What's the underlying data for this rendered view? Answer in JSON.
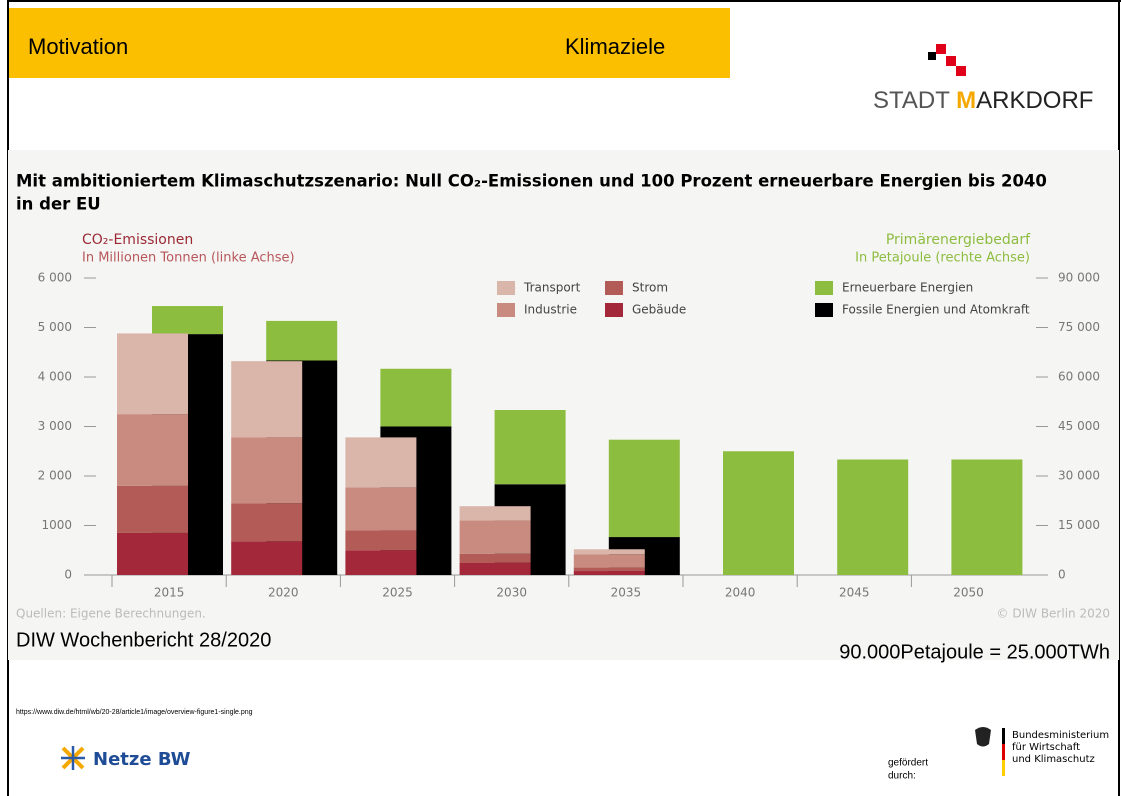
{
  "header": {
    "section": "Motivation",
    "topic": "Klimaziele",
    "logo": {
      "part1": "STADT ",
      "part2": "M",
      "part3": "ARKDORF"
    }
  },
  "chart_data": {
    "type": "bar",
    "title": [
      "Mit ambitioniertem Klimaschutzszenario: Null CO₂-Emissionen und 100 Prozent erneuerbare Energien bis 2040",
      "in der EU"
    ],
    "y_label": [
      "CO₂-Emissionen",
      "In Millionen Tonnen (linke Achse)"
    ],
    "y2_label": [
      "Primärenergiebedarf",
      "In Petajoule (rechte Achse)"
    ],
    "categories": [
      "2015",
      "2020",
      "2025",
      "2030",
      "2035",
      "2040",
      "2045",
      "2050"
    ],
    "series": [
      {
        "name": "Transport",
        "color": "#d9b5aa",
        "values": [
          1630,
          1540,
          1010,
          290,
          100,
          0,
          0,
          0
        ]
      },
      {
        "name": "Industrie",
        "color": "#c98b7f",
        "values": [
          1450,
          1330,
          870,
          670,
          270,
          0,
          0,
          0
        ]
      },
      {
        "name": "Strom",
        "color": "#b35b56",
        "values": [
          950,
          770,
          400,
          180,
          70,
          0,
          0,
          0
        ]
      },
      {
        "name": "Gebäude",
        "color": "#a3283a",
        "values": [
          850,
          680,
          500,
          250,
          80,
          0,
          0,
          0
        ]
      },
      {
        "name": "Erneuerbare Energien",
        "color": "#8dbd3f",
        "axis": "y2",
        "values": [
          8500,
          12000,
          17500,
          22500,
          29500,
          37500,
          35000,
          35000
        ]
      },
      {
        "name": "Fossile Energien und Atomkraft",
        "color": "#000000",
        "axis": "y2",
        "values": [
          73000,
          65000,
          45000,
          27500,
          11500,
          0,
          0,
          0
        ]
      }
    ],
    "ylim": [
      0,
      6000
    ],
    "yticks": [
      0,
      {
        "value": 1000,
        "label": "1000"
      },
      {
        "value": 2000,
        "label": "2 000"
      },
      {
        "value": 3000,
        "label": "3 000"
      },
      {
        "value": 4000,
        "label": "4 000"
      },
      {
        "value": 5000,
        "label": "5 000"
      },
      {
        "value": 6000,
        "label": "6 000"
      }
    ],
    "y2lim": [
      0,
      90000
    ],
    "y2ticks": [
      0,
      {
        "value": 15000,
        "label": "15 000"
      },
      {
        "value": 30000,
        "label": "30 000"
      },
      {
        "value": 45000,
        "label": "45 000"
      },
      {
        "value": 60000,
        "label": "60 000"
      },
      {
        "value": 75000,
        "label": "75 000"
      },
      {
        "value": 90000,
        "label": "90 000"
      }
    ],
    "source": "Quellen: Eigene Berechnungen.",
    "copyright": "© DIW Berlin 2020"
  },
  "citation": "DIW Wochenbericht 28/2020",
  "conversion": "90.000Petajoule = 25.000TWh",
  "url": "https://www.diw.de/html/wb/20-28/article1/image/overview-figure1-single.png",
  "footer": {
    "partner": "Netze BW",
    "funded": [
      "gefördert",
      "durch:"
    ],
    "ministry": [
      "Bundesministerium",
      "für Wirtschaft",
      "und Klimaschutz"
    ]
  }
}
